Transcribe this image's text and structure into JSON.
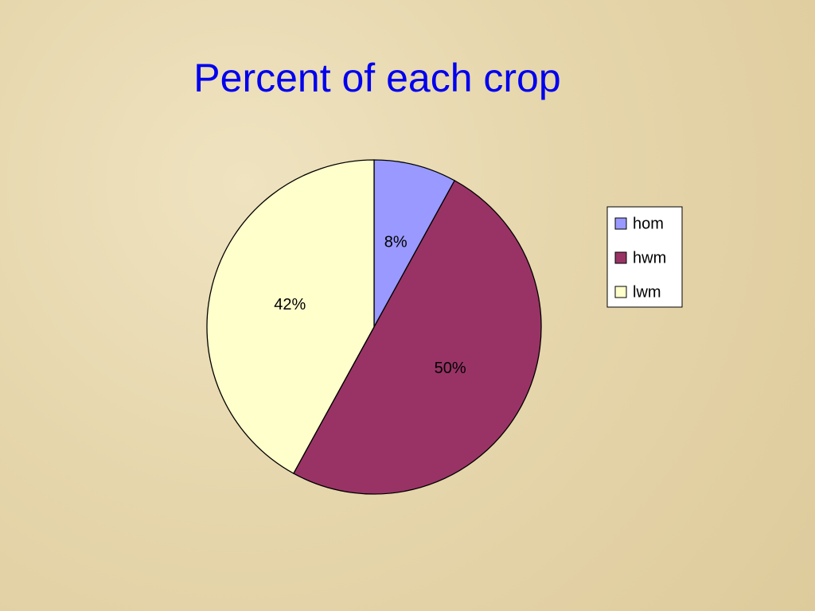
{
  "chart_data": {
    "type": "pie",
    "title": "Percent of each crop",
    "categories": [
      "hom",
      "hwm",
      "lwm"
    ],
    "values": [
      8,
      50,
      42
    ],
    "value_labels": [
      "8%",
      "50%",
      "42%"
    ],
    "colors": [
      "#9999ff",
      "#993366",
      "#ffffcc"
    ],
    "legend": "right"
  }
}
